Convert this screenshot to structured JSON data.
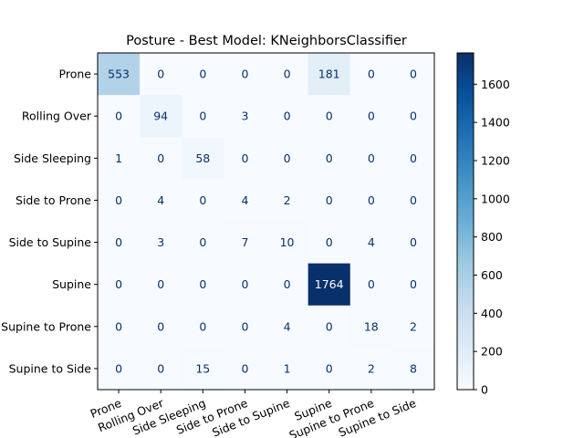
{
  "chart_data": {
    "type": "heatmap",
    "title": "Posture - Best Model: KNeighborsClassifier",
    "xlabel": "",
    "ylabel": "",
    "categories": [
      "Prone",
      "Rolling Over",
      "Side Sleeping",
      "Side to Prone",
      "Side to Supine",
      "Supine",
      "Supine to Prone",
      "Supine to Side"
    ],
    "matrix": [
      [
        553,
        0,
        0,
        0,
        0,
        181,
        0,
        0
      ],
      [
        0,
        94,
        0,
        3,
        0,
        0,
        0,
        0
      ],
      [
        1,
        0,
        58,
        0,
        0,
        0,
        0,
        0
      ],
      [
        0,
        4,
        0,
        4,
        2,
        0,
        0,
        0
      ],
      [
        0,
        3,
        0,
        7,
        10,
        0,
        4,
        0
      ],
      [
        0,
        0,
        0,
        0,
        0,
        1764,
        0,
        0
      ],
      [
        0,
        0,
        0,
        0,
        4,
        0,
        18,
        2
      ],
      [
        0,
        0,
        15,
        0,
        1,
        0,
        2,
        8
      ]
    ],
    "colormap": "Blues",
    "colorbar": {
      "range": [
        0,
        1764
      ],
      "ticks": [
        0,
        200,
        400,
        600,
        800,
        1000,
        1200,
        1400,
        1600
      ]
    },
    "text_colors": {
      "light": "#ffffff",
      "dark": "#08306b"
    },
    "grid": false
  }
}
